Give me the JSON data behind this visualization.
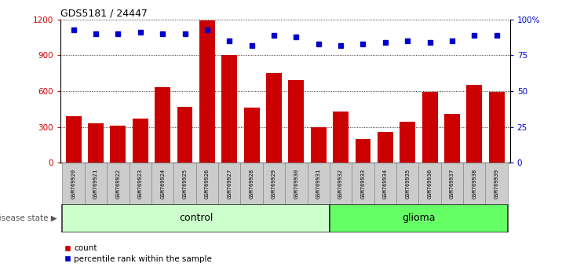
{
  "title": "GDS5181 / 24447",
  "samples": [
    "GSM769920",
    "GSM769921",
    "GSM769922",
    "GSM769923",
    "GSM769924",
    "GSM769925",
    "GSM769926",
    "GSM769927",
    "GSM769928",
    "GSM769929",
    "GSM769930",
    "GSM769931",
    "GSM769932",
    "GSM769933",
    "GSM769934",
    "GSM769935",
    "GSM769936",
    "GSM769937",
    "GSM769938",
    "GSM769939"
  ],
  "counts": [
    390,
    330,
    310,
    370,
    630,
    470,
    1190,
    900,
    460,
    750,
    690,
    300,
    430,
    195,
    255,
    345,
    590,
    410,
    650,
    590
  ],
  "percentiles": [
    93,
    90,
    90,
    91,
    90,
    90,
    93,
    85,
    82,
    89,
    88,
    83,
    82,
    83,
    84,
    85,
    84,
    85,
    89,
    89
  ],
  "control_count": 12,
  "glioma_count": 8,
  "bar_color": "#cc0000",
  "dot_color": "#0000cc",
  "left_yaxis_color": "#cc0000",
  "right_yaxis_color": "#0000cc",
  "ylim_left": [
    0,
    1200
  ],
  "ylim_right": [
    0,
    100
  ],
  "yticks_left": [
    0,
    300,
    600,
    900,
    1200
  ],
  "yticks_right": [
    0,
    25,
    50,
    75,
    100
  ],
  "ytick_labels_right": [
    "0",
    "25",
    "50",
    "75",
    "100%"
  ],
  "control_color": "#ccffcc",
  "glioma_color": "#66ff66",
  "band_border": "#333333",
  "grid_color": "#000000",
  "legend_count_label": "count",
  "legend_pct_label": "percentile rank within the sample",
  "disease_state_label": "disease state",
  "bg_color": "#ffffff",
  "label_box_color": "#cccccc",
  "label_box_edge": "#888888"
}
